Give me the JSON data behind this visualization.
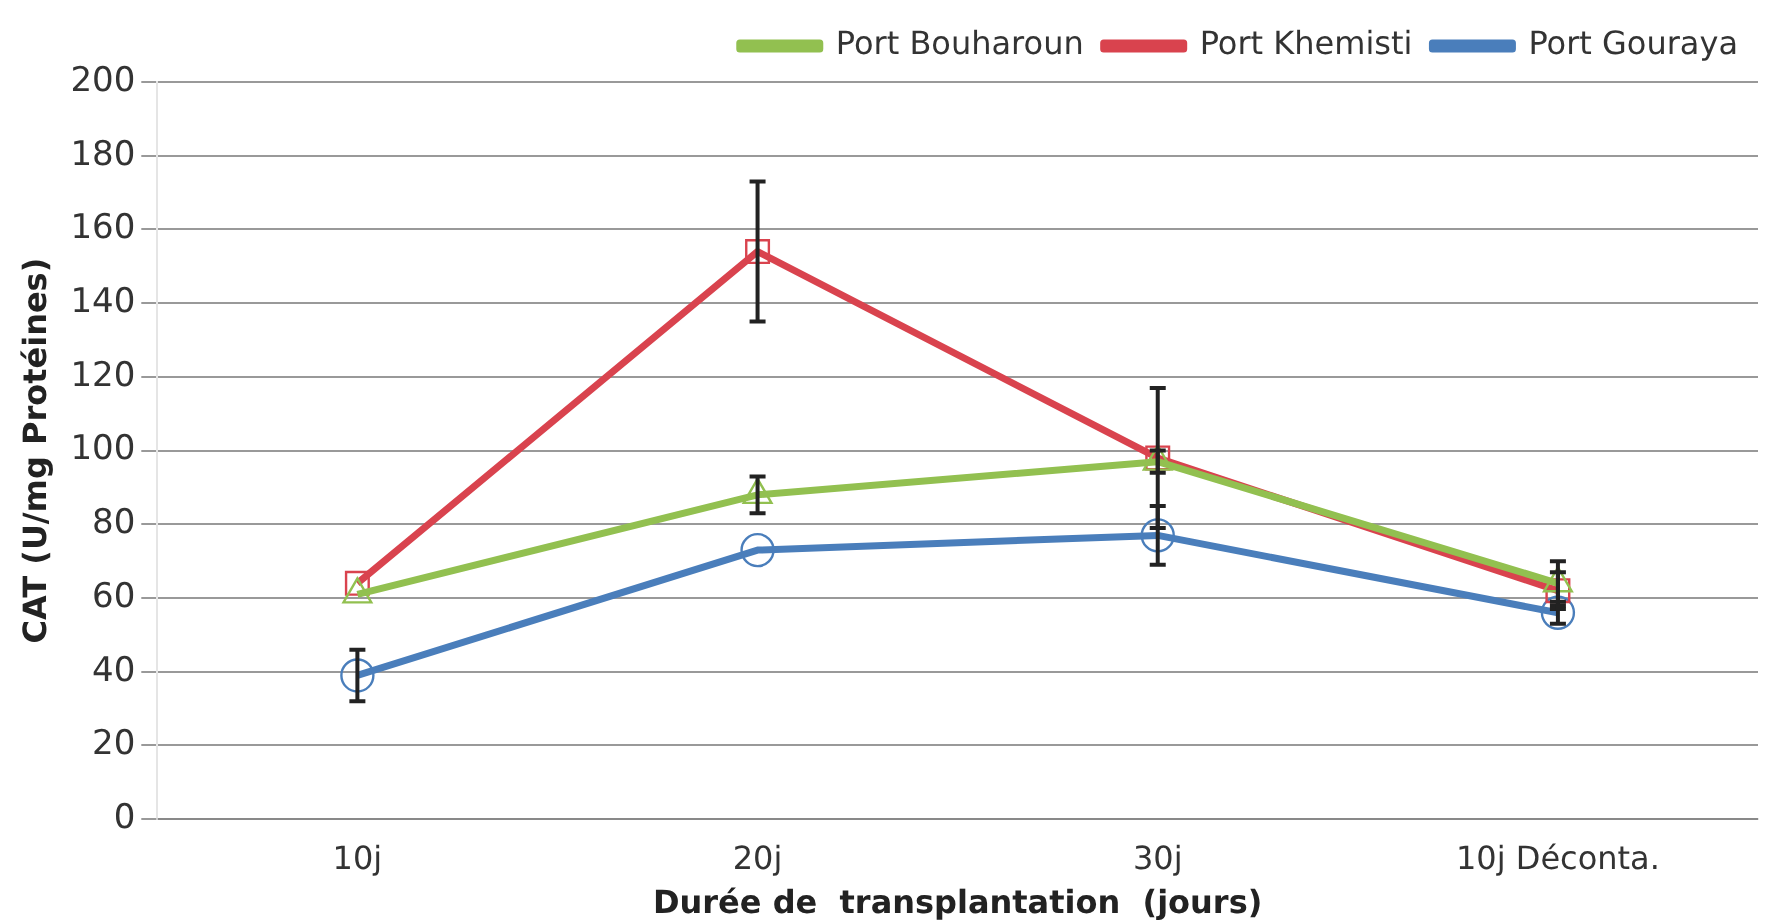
{
  "chart_data": {
    "type": "line",
    "xlabel": "Durée de  transplantation  (jours)",
    "ylabel": "CAT (U/mg Protéines)",
    "categories": [
      "10j",
      "20j",
      "30j",
      "10j Déconta."
    ],
    "series": [
      {
        "name": "Port Bouharoun",
        "color": "#92c050",
        "marker": "triangle",
        "values": [
          61,
          88,
          97,
          64
        ],
        "errors": [
          null,
          5,
          3,
          6
        ]
      },
      {
        "name": "Port Khemisti",
        "color": "#d9434e",
        "marker": "square",
        "values": [
          64,
          154,
          98,
          62
        ],
        "errors": [
          null,
          19,
          19,
          5
        ]
      },
      {
        "name": "Port Gouraya",
        "color": "#4a7ebb",
        "marker": "circle",
        "values": [
          39,
          73,
          77,
          56
        ],
        "errors": [
          7,
          null,
          8,
          3
        ]
      }
    ],
    "ylim": [
      0,
      200
    ],
    "yticks": [
      0,
      20,
      40,
      60,
      80,
      100,
      120,
      140,
      160,
      180,
      200
    ],
    "grid": "y",
    "legend": "top right"
  }
}
